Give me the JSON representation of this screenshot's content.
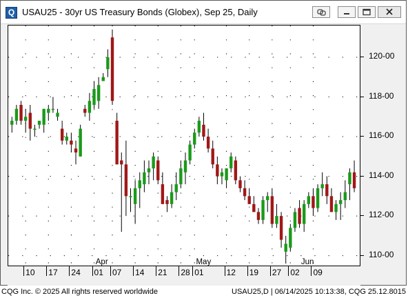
{
  "window": {
    "app_icon_glyph": "Q",
    "title": "USAU25 - 30yr US Treasury Bonds (Globex), Sep 25, Daily",
    "controls": [
      "link-icon",
      "minimize-icon",
      "restore-icon",
      "close-icon"
    ]
  },
  "colors": {
    "up": "#1a9a1a",
    "down": "#a01818",
    "grid": "#000000"
  },
  "y_ticks": [
    "120-00",
    "118-00",
    "116-00",
    "114-00",
    "112-00",
    "110-00"
  ],
  "months": [
    {
      "label": "Apr",
      "bar": 20
    },
    {
      "label": "May",
      "bar": 42
    },
    {
      "label": "Jun",
      "bar": 65
    }
  ],
  "days": [
    {
      "label": "10",
      "bar": 3
    },
    {
      "label": "17",
      "bar": 8
    },
    {
      "label": "24",
      "bar": 13
    },
    {
      "label": "01",
      "bar": 18
    },
    {
      "label": "07",
      "bar": 22
    },
    {
      "label": "14",
      "bar": 27
    },
    {
      "label": "21",
      "bar": 32
    },
    {
      "label": "28",
      "bar": 37
    },
    {
      "label": "01",
      "bar": 40
    },
    {
      "label": "12",
      "bar": 47
    },
    {
      "label": "19",
      "bar": 52
    },
    {
      "label": "27",
      "bar": 57
    },
    {
      "label": "02",
      "bar": 61
    },
    {
      "label": "09",
      "bar": 66
    }
  ],
  "chart_data": {
    "type": "candlestick",
    "ylim": [
      109.5,
      121.6
    ],
    "yticks": [
      110,
      112,
      114,
      116,
      118,
      120
    ],
    "candles": [
      [
        116.6,
        117.0,
        116.2,
        116.8
      ],
      [
        116.8,
        117.6,
        116.6,
        117.4
      ],
      [
        117.6,
        117.8,
        116.6,
        116.8
      ],
      [
        116.8,
        117.4,
        116.2,
        117.0
      ],
      [
        117.2,
        117.6,
        115.8,
        116.4
      ],
      [
        116.4,
        116.6,
        116.0,
        116.4
      ],
      [
        116.6,
        116.8,
        116.4,
        116.8
      ],
      [
        116.6,
        117.4,
        116.2,
        117.4
      ],
      [
        117.2,
        117.6,
        116.8,
        117.4
      ],
      [
        117.4,
        118.0,
        117.2,
        117.4
      ],
      [
        117.0,
        117.4,
        116.8,
        117.2
      ],
      [
        116.4,
        116.8,
        115.6,
        115.8
      ],
      [
        115.8,
        116.2,
        115.6,
        116.0
      ],
      [
        115.8,
        116.2,
        115.2,
        115.6
      ],
      [
        115.4,
        115.8,
        114.6,
        115.2
      ],
      [
        115.0,
        116.6,
        115.0,
        116.4
      ],
      [
        117.4,
        117.6,
        117.0,
        117.2
      ],
      [
        117.2,
        118.2,
        116.8,
        117.8
      ],
      [
        117.6,
        118.8,
        117.4,
        118.4
      ],
      [
        117.8,
        119.0,
        117.4,
        118.6
      ],
      [
        118.8,
        119.2,
        118.8,
        119.0
      ],
      [
        119.4,
        120.4,
        119.0,
        120.0
      ],
      [
        121.0,
        121.4,
        117.6,
        117.8
      ],
      [
        116.8,
        117.2,
        114.6,
        114.6
      ],
      [
        114.8,
        115.2,
        111.2,
        114.6
      ],
      [
        114.6,
        115.8,
        112.0,
        113.0
      ],
      [
        113.0,
        113.4,
        112.2,
        113.0
      ],
      [
        112.6,
        113.8,
        111.6,
        113.4
      ],
      [
        113.4,
        114.2,
        112.4,
        113.8
      ],
      [
        113.6,
        114.8,
        113.2,
        114.2
      ],
      [
        114.2,
        114.8,
        113.6,
        114.4
      ],
      [
        114.4,
        115.2,
        113.8,
        115.0
      ],
      [
        114.8,
        115.0,
        113.6,
        113.8
      ],
      [
        113.6,
        114.2,
        112.6,
        112.6
      ],
      [
        112.8,
        113.0,
        112.2,
        112.6
      ],
      [
        112.6,
        113.6,
        112.4,
        113.2
      ],
      [
        113.2,
        114.2,
        112.8,
        113.6
      ],
      [
        113.6,
        114.8,
        113.4,
        114.4
      ],
      [
        114.2,
        115.2,
        113.6,
        114.8
      ],
      [
        114.8,
        115.8,
        114.6,
        115.6
      ],
      [
        115.6,
        116.4,
        115.4,
        116.2
      ],
      [
        116.2,
        117.0,
        116.0,
        116.8
      ],
      [
        116.6,
        117.2,
        115.8,
        116.0
      ],
      [
        116.0,
        116.4,
        115.2,
        115.4
      ],
      [
        115.4,
        115.8,
        114.4,
        114.6
      ],
      [
        114.6,
        115.0,
        113.6,
        114.0
      ],
      [
        114.0,
        114.4,
        113.6,
        114.2
      ],
      [
        113.8,
        114.4,
        113.4,
        114.4
      ],
      [
        114.4,
        115.2,
        114.2,
        115.0
      ],
      [
        114.8,
        115.0,
        113.6,
        113.8
      ],
      [
        113.8,
        114.0,
        113.2,
        113.4
      ],
      [
        113.4,
        113.8,
        112.8,
        113.0
      ],
      [
        113.0,
        113.4,
        112.6,
        112.6
      ],
      [
        112.6,
        113.0,
        112.2,
        112.2
      ],
      [
        112.2,
        112.4,
        111.6,
        111.8
      ],
      [
        111.8,
        113.0,
        111.6,
        112.8
      ],
      [
        112.8,
        113.2,
        112.2,
        113.0
      ],
      [
        113.0,
        113.4,
        111.4,
        111.6
      ],
      [
        111.6,
        112.6,
        111.4,
        112.0
      ],
      [
        112.0,
        112.2,
        110.4,
        110.8
      ],
      [
        110.2,
        111.0,
        109.6,
        110.6
      ],
      [
        110.4,
        111.6,
        110.2,
        111.4
      ],
      [
        111.4,
        112.4,
        111.2,
        112.2
      ],
      [
        112.4,
        112.8,
        111.4,
        111.6
      ],
      [
        111.6,
        112.8,
        111.2,
        112.6
      ],
      [
        112.6,
        113.2,
        112.4,
        113.0
      ],
      [
        113.0,
        113.4,
        112.0,
        112.4
      ],
      [
        112.4,
        113.6,
        112.2,
        113.4
      ],
      [
        113.4,
        114.2,
        113.0,
        113.6
      ],
      [
        113.6,
        114.0,
        112.6,
        113.0
      ],
      [
        113.0,
        113.4,
        112.2,
        112.2
      ],
      [
        112.2,
        112.8,
        111.8,
        112.6
      ],
      [
        112.6,
        113.2,
        111.8,
        112.8
      ],
      [
        112.8,
        113.8,
        112.4,
        113.2
      ],
      [
        113.6,
        114.4,
        112.8,
        114.2
      ],
      [
        114.2,
        114.8,
        113.2,
        113.4
      ]
    ]
  },
  "footer": {
    "left": "CQG Inc. © 2025 All rights reserved worldwide",
    "right": "USAU25,D | 06/14/2025 10:13:38, CQG 25.12.8015"
  }
}
